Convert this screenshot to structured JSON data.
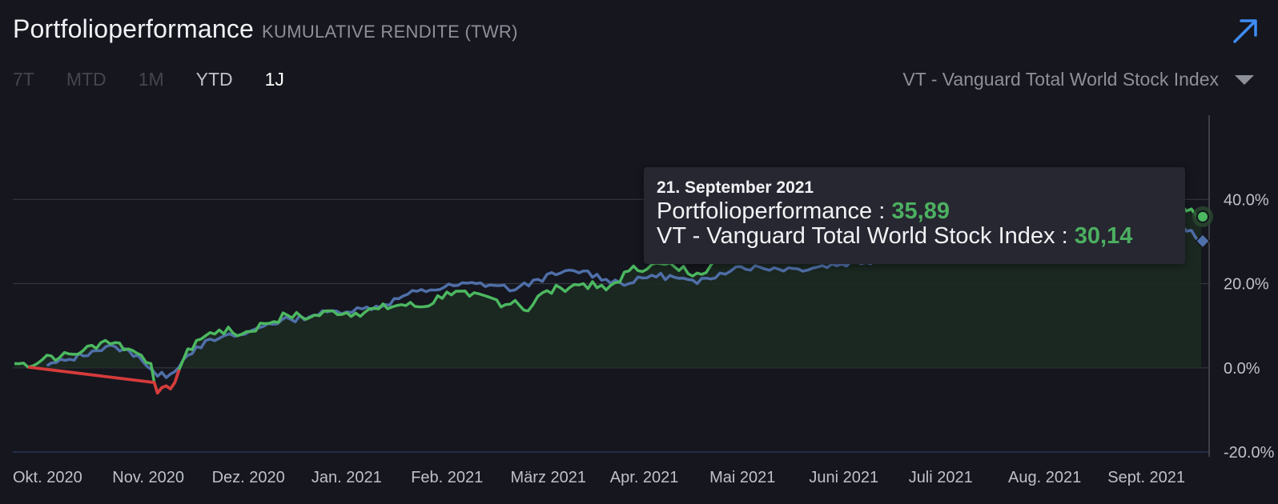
{
  "header": {
    "title": "Portfolioperformance",
    "subtitle": "KUMULATIVE RENDITE (TWR)"
  },
  "ranges": [
    {
      "label": "7T"
    },
    {
      "label": "MTD"
    },
    {
      "label": "1M"
    },
    {
      "label": "YTD"
    },
    {
      "label": "1J"
    }
  ],
  "benchmark": {
    "selected": "VT - Vanguard Total World Stock Index"
  },
  "tooltip": {
    "date": "21. September 2021",
    "portfolio_label": "Portfolioperformance :",
    "portfolio_value": "35,89",
    "benchmark_label": "VT - Vanguard Total World Stock Index :",
    "benchmark_value": "30,14"
  },
  "colors": {
    "portfolio": "#4cb860",
    "benchmark": "#4f6fa8",
    "negative": "#d63b3b",
    "background": "#15161e"
  },
  "chart_data": {
    "type": "line",
    "title": "Portfolioperformance",
    "subtitle": "KUMULATIVE RENDITE (TWR)",
    "x_ticks": [
      "Okt. 2020",
      "Nov. 2020",
      "Dez. 2020",
      "Jan. 2021",
      "Feb. 2021",
      "März 2021",
      "Apr. 2021",
      "Mai 2021",
      "Juni 2021",
      "Juli 2021",
      "Aug. 2021",
      "Sept. 2021"
    ],
    "y_ticks": [
      40,
      20,
      0,
      -20
    ],
    "y_tick_labels": [
      "40.0%",
      "20.0%",
      "0.0%",
      "-20.0%"
    ],
    "ylim": [
      -20,
      60
    ],
    "grid": true,
    "x_range": [
      "2020-09-21",
      "2021-09-21"
    ],
    "series": [
      {
        "name": "Portfolioperformance",
        "points": [
          [
            "2020-09-21",
            1
          ],
          [
            "2020-09-28",
            1
          ],
          [
            "2020-10-01",
            3
          ],
          [
            "2020-10-05",
            2.5
          ],
          [
            "2020-10-12",
            4
          ],
          [
            "2020-10-19",
            6.5
          ],
          [
            "2020-10-22",
            6
          ],
          [
            "2020-10-26",
            4.5
          ],
          [
            "2020-10-30",
            3
          ],
          [
            "2020-11-02",
            1
          ],
          [
            "2020-11-04",
            -6
          ],
          [
            "2020-11-08",
            -5
          ],
          [
            "2020-11-12",
            2
          ],
          [
            "2020-11-16",
            6.5
          ],
          [
            "2020-11-23",
            9
          ],
          [
            "2020-11-30",
            8
          ],
          [
            "2020-12-07",
            10.5
          ],
          [
            "2020-12-14",
            12.5
          ],
          [
            "2020-12-21",
            12
          ],
          [
            "2020-12-28",
            13.5
          ],
          [
            "2021-01-04",
            13
          ],
          [
            "2021-01-11",
            14
          ],
          [
            "2021-01-18",
            15
          ],
          [
            "2021-01-25",
            14.5
          ],
          [
            "2021-02-01",
            18
          ],
          [
            "2021-02-08",
            17
          ],
          [
            "2021-02-15",
            16.5
          ],
          [
            "2021-02-19",
            15
          ],
          [
            "2021-02-22",
            16
          ],
          [
            "2021-02-26",
            13.5
          ],
          [
            "2021-03-01",
            17
          ],
          [
            "2021-03-08",
            19
          ],
          [
            "2021-03-15",
            20
          ],
          [
            "2021-03-22",
            18.5
          ],
          [
            "2021-03-29",
            23
          ],
          [
            "2021-04-05",
            24.5
          ],
          [
            "2021-04-12",
            24
          ],
          [
            "2021-04-19",
            22.5
          ],
          [
            "2021-04-26",
            25.5
          ],
          [
            "2021-05-01",
            27
          ],
          [
            "2021-09-15",
            38.5
          ],
          [
            "2021-09-21",
            35.9
          ]
        ]
      },
      {
        "name": "VT - Vanguard Total World Stock Index",
        "points": [
          [
            "2020-10-01",
            0.5
          ],
          [
            "2020-10-08",
            2
          ],
          [
            "2020-10-15",
            4
          ],
          [
            "2020-10-22",
            5
          ],
          [
            "2020-10-29",
            3
          ],
          [
            "2020-11-04",
            -2
          ],
          [
            "2020-11-08",
            -1.5
          ],
          [
            "2020-11-12",
            2
          ],
          [
            "2020-11-16",
            5
          ],
          [
            "2020-11-23",
            7
          ],
          [
            "2020-12-01",
            8
          ],
          [
            "2020-12-08",
            10.5
          ],
          [
            "2020-12-15",
            11.5
          ],
          [
            "2020-12-22",
            12.5
          ],
          [
            "2020-12-29",
            13.5
          ],
          [
            "2021-01-06",
            14
          ],
          [
            "2021-01-13",
            15
          ],
          [
            "2021-01-20",
            17.5
          ],
          [
            "2021-01-27",
            18.5
          ],
          [
            "2021-02-03",
            19.5
          ],
          [
            "2021-02-10",
            20
          ],
          [
            "2021-02-17",
            19.5
          ],
          [
            "2021-02-22",
            18.5
          ],
          [
            "2021-03-01",
            21
          ],
          [
            "2021-03-08",
            22.5
          ],
          [
            "2021-03-15",
            23
          ],
          [
            "2021-03-22",
            21
          ],
          [
            "2021-03-29",
            20
          ],
          [
            "2021-04-05",
            22
          ],
          [
            "2021-04-12",
            21.5
          ],
          [
            "2021-04-19",
            20
          ],
          [
            "2021-04-26",
            22.5
          ],
          [
            "2021-05-01",
            24
          ],
          [
            "2021-05-20",
            23.5
          ],
          [
            "2021-09-15",
            34
          ],
          [
            "2021-09-21",
            30.1
          ]
        ]
      }
    ]
  }
}
